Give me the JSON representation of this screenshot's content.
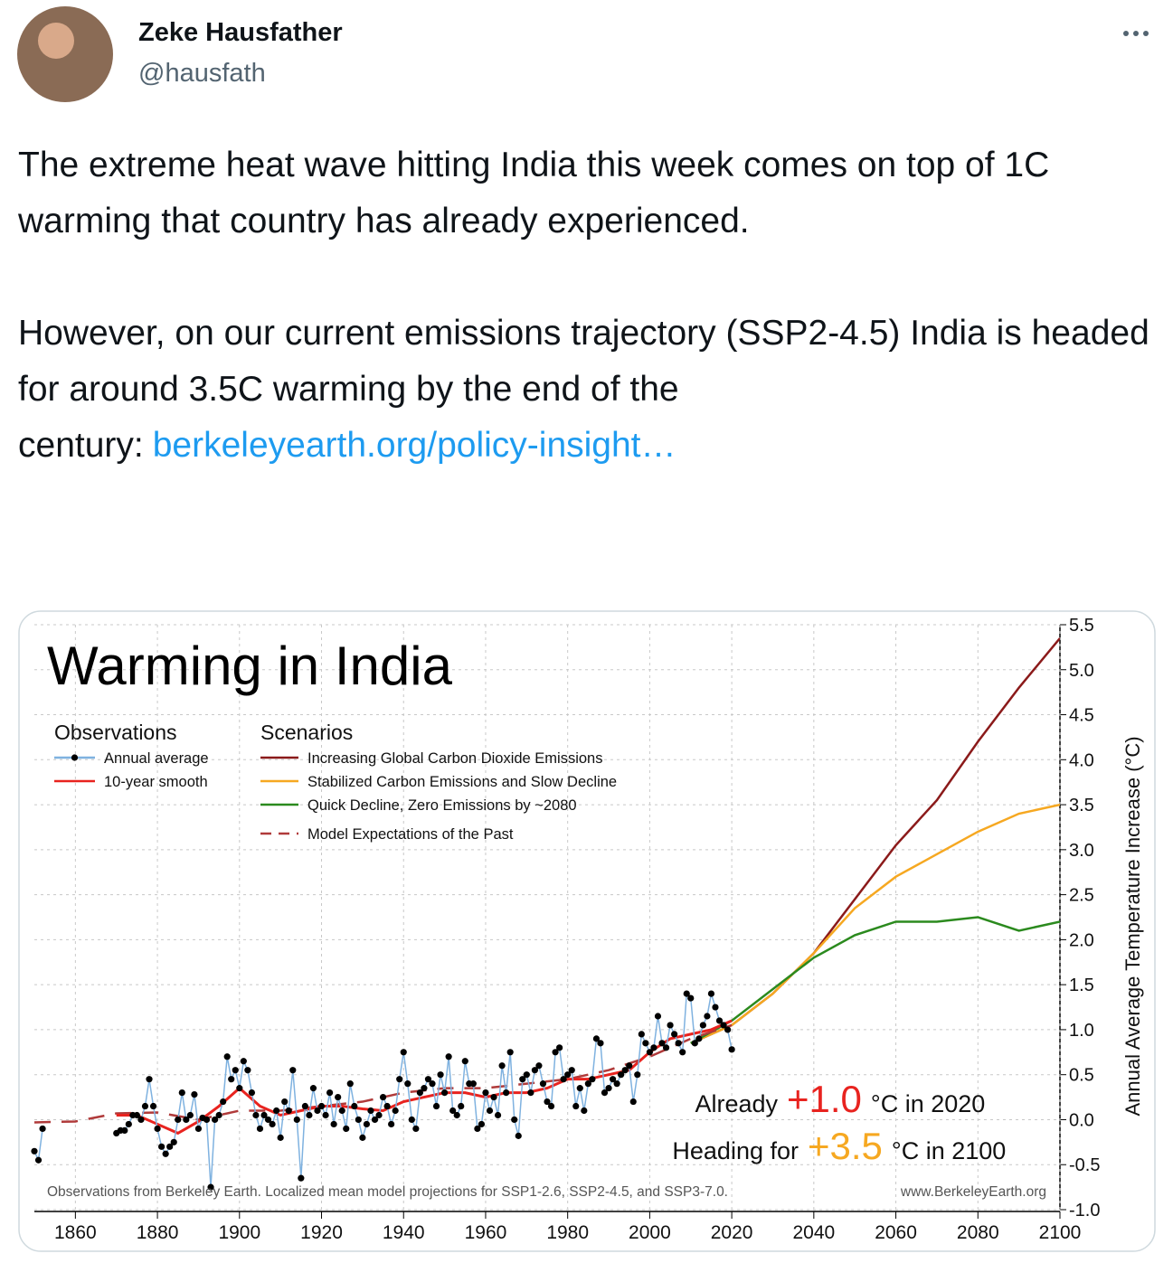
{
  "tweet": {
    "author_name": "Zeke Hausfather",
    "handle": "@hausfath",
    "paragraphs": [
      "The extreme heat wave hitting India this week comes on top of 1C warming that country has already experienced.",
      "However, on our current emissions trajectory (SSP2-4.5) India is headed for around 3.5C warming by the end of the century:"
    ],
    "link": "berkeleyearth.org/policy-insight…"
  },
  "chart_data": {
    "type": "line",
    "title": "Warming in India",
    "y_label": "Annual Average Temperature Increase (°C)",
    "legend_groups": [
      "Observations",
      "Scenarios"
    ],
    "xlim": [
      1850,
      2100
    ],
    "xticks": [
      1860,
      1880,
      1900,
      1920,
      1940,
      1960,
      1980,
      2000,
      2020,
      2040,
      2060,
      2080,
      2100
    ],
    "ylim": [
      -1.0,
      5.5
    ],
    "yticks": [
      {
        "value": -1,
        "label": "-1.0"
      },
      -0.5,
      {
        "value": 0,
        "label": "0.0"
      },
      0.5,
      {
        "value": 1,
        "label": "1.0"
      },
      1.5,
      {
        "value": 2,
        "label": "2.0"
      },
      2.5,
      {
        "value": 3,
        "label": "3.0"
      },
      3.5,
      {
        "value": 4,
        "label": "4.0"
      },
      4.5,
      {
        "value": 5,
        "label": "5.0"
      },
      5.5
    ],
    "grid": true,
    "series": [
      {
        "name": "Annual average",
        "group": 0,
        "color": "#7fb2e0",
        "marker_color": "#000000",
        "x": [
          1850,
          1851,
          1852,
          1853,
          1870,
          1871,
          1872,
          1873,
          1874,
          1875,
          1876,
          1877,
          1878,
          1879,
          1880,
          1881,
          1882,
          1883,
          1884,
          1885,
          1886,
          1887,
          1888,
          1889,
          1890,
          1891,
          1892,
          1893,
          1894,
          1895,
          1896,
          1897,
          1898,
          1899,
          1900,
          1901,
          1902,
          1903,
          1904,
          1905,
          1906,
          1907,
          1908,
          1909,
          1910,
          1911,
          1912,
          1913,
          1914,
          1915,
          1916,
          1917,
          1918,
          1919,
          1920,
          1921,
          1922,
          1923,
          1924,
          1925,
          1926,
          1927,
          1928,
          1929,
          1930,
          1931,
          1932,
          1933,
          1934,
          1935,
          1936,
          1937,
          1938,
          1939,
          1940,
          1941,
          1942,
          1943,
          1944,
          1945,
          1946,
          1947,
          1948,
          1949,
          1950,
          1951,
          1952,
          1953,
          1954,
          1955,
          1956,
          1957,
          1958,
          1959,
          1960,
          1961,
          1962,
          1963,
          1964,
          1965,
          1966,
          1967,
          1968,
          1969,
          1970,
          1971,
          1972,
          1973,
          1974,
          1975,
          1976,
          1977,
          1978,
          1979,
          1980,
          1981,
          1982,
          1983,
          1984,
          1985,
          1986,
          1987,
          1988,
          1989,
          1990,
          1991,
          1992,
          1993,
          1994,
          1995,
          1996,
          1997,
          1998,
          1999,
          2000,
          2001,
          2002,
          2003,
          2004,
          2005,
          2006,
          2007,
          2008,
          2009,
          2010,
          2011,
          2012,
          2013,
          2014,
          2015,
          2016,
          2017,
          2018,
          2019,
          2020
        ],
        "values": [
          -0.35,
          -0.45,
          -0.1,
          null,
          -0.15,
          -0.12,
          -0.12,
          -0.05,
          0.05,
          0.05,
          0,
          0.15,
          0.45,
          0.15,
          -0.1,
          -0.3,
          -0.38,
          -0.3,
          -0.25,
          0,
          0.3,
          0,
          0.05,
          0.28,
          -0.1,
          0.02,
          0,
          -0.75,
          0,
          0.05,
          0.2,
          0.7,
          0.45,
          0.55,
          0.35,
          0.65,
          0.55,
          0.3,
          0.05,
          -0.1,
          0.05,
          0,
          -0.05,
          0.1,
          -0.2,
          0.2,
          0.1,
          0.55,
          0,
          -0.65,
          0.15,
          0.05,
          0.35,
          0.1,
          0.15,
          0.05,
          0.3,
          -0.05,
          0.25,
          0.1,
          -0.1,
          0.4,
          0.15,
          0,
          -0.2,
          -0.05,
          0.1,
          0,
          0.05,
          0.25,
          0.15,
          -0.05,
          0.1,
          0.45,
          0.75,
          0.4,
          0,
          -0.1,
          0.3,
          0.35,
          0.45,
          0.4,
          0.15,
          0.5,
          0.3,
          0.7,
          0.1,
          0.05,
          0.15,
          0.65,
          0.4,
          0.4,
          -0.1,
          -0.05,
          0.3,
          0.1,
          0.25,
          0.05,
          0.6,
          0.3,
          0.75,
          0,
          -0.18,
          0.45,
          0.5,
          0.3,
          0.55,
          0.6,
          0.4,
          0.2,
          0.15,
          0.75,
          0.8,
          0.45,
          0.5,
          0.55,
          0.15,
          0.35,
          0.1,
          0.4,
          0.45,
          0.9,
          0.85,
          0.3,
          0.35,
          0.45,
          0.4,
          0.5,
          0.55,
          0.6,
          0.2,
          0.5,
          0.95,
          0.85,
          0.75,
          0.8,
          1.15,
          0.85,
          0.8,
          1.05,
          0.95,
          0.85,
          0.75,
          1.4,
          1.35,
          0.85,
          0.9,
          1.05,
          1.15,
          1.4,
          1.25,
          1.1,
          1.05,
          1,
          0.78
        ]
      },
      {
        "name": "10-year smooth",
        "group": 0,
        "color": "#e8231f",
        "x": [
          1870,
          1875,
          1880,
          1885,
          1890,
          1895,
          1900,
          1905,
          1910,
          1915,
          1920,
          1925,
          1930,
          1935,
          1940,
          1945,
          1950,
          1955,
          1960,
          1965,
          1970,
          1975,
          1980,
          1985,
          1990,
          1995,
          2000,
          2005,
          2010,
          2015,
          2020
        ],
        "values": [
          0.05,
          0.05,
          -0.05,
          -0.15,
          -0.02,
          0.15,
          0.35,
          0.15,
          0.05,
          0.1,
          0.15,
          0.15,
          0.12,
          0.1,
          0.2,
          0.25,
          0.3,
          0.3,
          0.25,
          0.3,
          0.3,
          0.35,
          0.45,
          0.45,
          0.5,
          0.55,
          0.75,
          0.9,
          0.95,
          1,
          1.1
        ]
      },
      {
        "name": "Increasing Global Carbon Dioxide Emissions",
        "group": 1,
        "color": "#8b1a1a",
        "x": [
          2010,
          2020,
          2030,
          2040,
          2050,
          2060,
          2070,
          2080,
          2090,
          2100
        ],
        "values": [
          0.85,
          1.05,
          1.4,
          1.85,
          2.45,
          3.05,
          3.55,
          4.2,
          4.8,
          5.35
        ]
      },
      {
        "name": "Stabilized Carbon Emissions and Slow Decline",
        "group": 1,
        "color": "#f6a821",
        "x": [
          2010,
          2020,
          2030,
          2040,
          2050,
          2060,
          2070,
          2080,
          2090,
          2100
        ],
        "values": [
          0.85,
          1.05,
          1.4,
          1.85,
          2.35,
          2.7,
          2.95,
          3.2,
          3.4,
          3.5
        ]
      },
      {
        "name": "Quick Decline, Zero Emissions by ~2080",
        "group": 1,
        "color": "#2b8a1e",
        "x": [
          2010,
          2020,
          2030,
          2040,
          2050,
          2060,
          2070,
          2080,
          2090,
          2100
        ],
        "values": [
          0.85,
          1.1,
          1.45,
          1.8,
          2.05,
          2.2,
          2.2,
          2.25,
          2.1,
          2.2
        ]
      },
      {
        "name": "Model Expectations of the Past",
        "group": 1,
        "color": "#b03a3a",
        "dashed": true,
        "x": [
          1850,
          1860,
          1870,
          1880,
          1890,
          1900,
          1910,
          1920,
          1930,
          1940,
          1950,
          1960,
          1970,
          1980,
          1990,
          2000,
          2010,
          2020
        ],
        "values": [
          -0.03,
          -0.02,
          0.07,
          0.08,
          0,
          0.1,
          0.1,
          0.15,
          0.2,
          0.3,
          0.35,
          0.35,
          0.4,
          0.45,
          0.55,
          0.7,
          0.9,
          1.05
        ]
      }
    ],
    "annotations": [
      [
        "Already",
        "+1.0",
        "°C in 2020"
      ],
      [
        "Heading for",
        "+3.5",
        "°C in 2100"
      ]
    ],
    "footer": "Observations from Berkeley Earth. Localized mean model projections for SSP1-2.6, SSP2-4.5, and SSP3-7.0.",
    "source": "www.BerkeleyEarth.org"
  }
}
